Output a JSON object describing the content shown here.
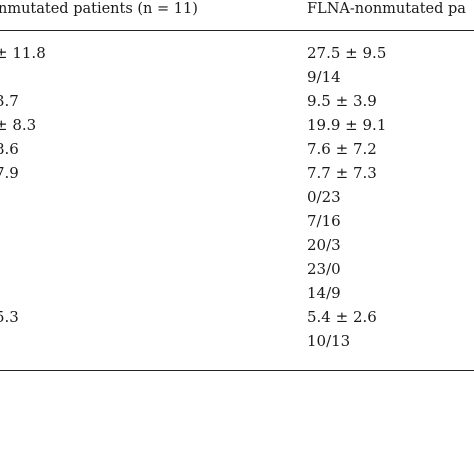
{
  "table": {
    "headers": {
      "left": "nmutated patients (n = 11)",
      "right": "FLNA-nonmutated pa"
    },
    "left_column": [
      "± 11.8",
      "",
      "3.7",
      "± 8.3",
      "8.6",
      "7.9",
      "",
      "",
      "",
      "",
      "",
      "5.3",
      ""
    ],
    "right_column": [
      "27.5  ±  9.5",
      "9/14",
      "9.5  ±  3.9",
      "19.9  ±  9.1",
      "7.6  ±  7.2",
      "7.7  ±  7.3",
      "0/23",
      "7/16",
      "20/3",
      "23/0",
      "14/9",
      "5.4  ±  2.6",
      "10/13"
    ]
  }
}
